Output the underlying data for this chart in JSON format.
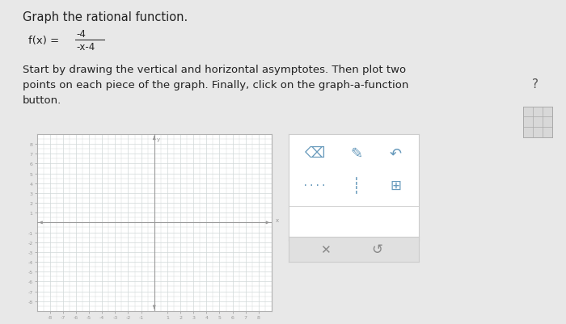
{
  "title_text": "Graph the rational function.",
  "formula_prefix": "f(x) =",
  "formula_numerator": "-4",
  "formula_denominator": "-x-4",
  "body_text": "Start by drawing the vertical and horizontal asymptotes. Then plot two\npoints on each piece of the graph. Finally, click on the graph-a-function\nbutton.",
  "bg_color": "#e8e8e8",
  "content_bg": "#f5f5f5",
  "graph_bg": "#ffffff",
  "graph_border": "#b0b0b0",
  "grid_color": "#d0d8d8",
  "axis_color": "#999999",
  "tick_label_color": "#999999",
  "text_color": "#222222",
  "tool_bg": "#ffffff",
  "tool_border": "#cccccc",
  "tool_bottom_bg": "#e0e0e0",
  "tool_icon_color": "#6699bb",
  "x_label": "x",
  "y_label": "y",
  "xlim": [
    -9,
    9
  ],
  "ylim": [
    -9,
    9
  ],
  "xticks": [
    -8,
    -7,
    -6,
    -5,
    -4,
    -3,
    -2,
    -1,
    1,
    2,
    3,
    4,
    5,
    6,
    7,
    8
  ],
  "yticks": [
    -8,
    -7,
    -6,
    -5,
    -4,
    -3,
    -2,
    -1,
    1,
    2,
    3,
    4,
    5,
    6,
    7,
    8
  ]
}
